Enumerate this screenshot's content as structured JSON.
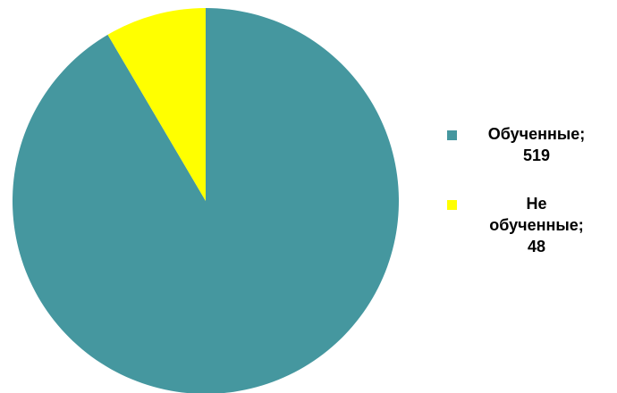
{
  "chart_data": {
    "type": "pie",
    "categories": [
      "Обученные",
      "Не обученные"
    ],
    "values": [
      519,
      48
    ],
    "colors": [
      "#45979f",
      "#ffff00"
    ],
    "legend_placement": "right",
    "data_labels_in_legend": true,
    "legend": [
      {
        "lines": [
          "Обученные;",
          "519"
        ],
        "color": "#45979f"
      },
      {
        "lines": [
          "Не",
          "обученные;",
          "48"
        ],
        "color": "#ffff00"
      }
    ]
  }
}
